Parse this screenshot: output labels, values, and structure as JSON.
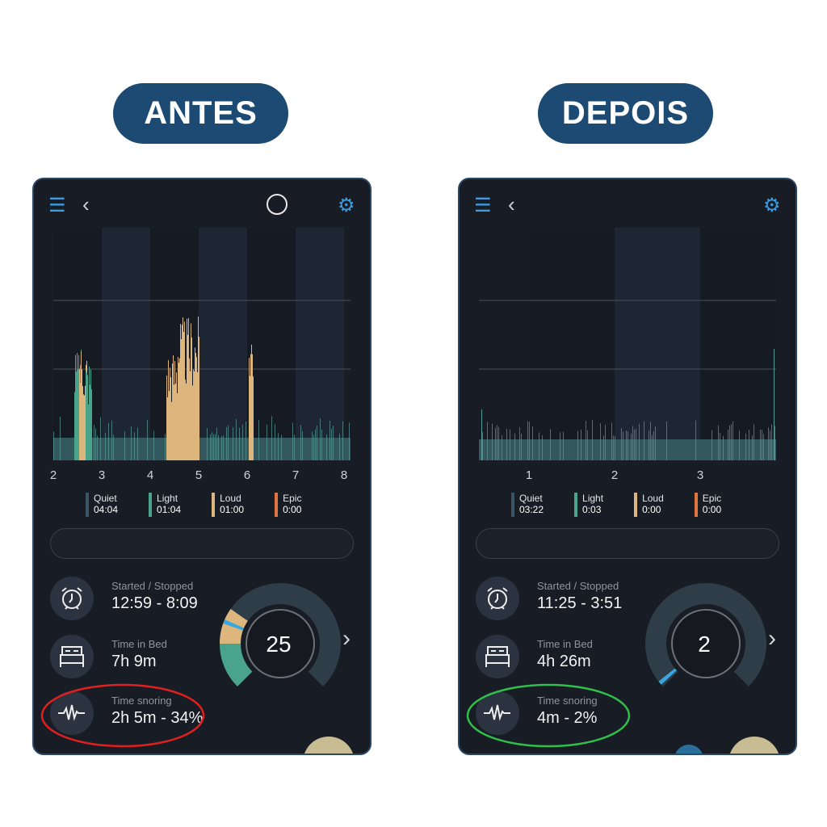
{
  "labels": {
    "before": "ANTES",
    "after": "DEPOIS"
  },
  "colors": {
    "quiet": "#3b5566",
    "light": "#4aa48c",
    "loud": "#dcb67c",
    "epic": "#e0733e",
    "score_tick": "#3aa6e0",
    "before_circle": "#e0201e",
    "after_circle": "#2fbf4a"
  },
  "panels": [
    {
      "axis_ticks": [
        "2",
        "3",
        "4",
        "5",
        "6",
        "7",
        "8"
      ],
      "legend": [
        {
          "name": "Quiet",
          "value": "04:04"
        },
        {
          "name": "Light",
          "value": "01:04"
        },
        {
          "name": "Loud",
          "value": "01:00"
        },
        {
          "name": "Epic",
          "value": "0:00"
        }
      ],
      "started_label": "Started / Stopped",
      "started_value": "12:59 - 8:09",
      "bed_label": "Time in Bed",
      "bed_value": "7h 9m",
      "snore_label": "Time snoring",
      "snore_value": "2h 5m - 34%",
      "score": "25",
      "has_history_icon": true
    },
    {
      "axis_ticks": [
        "1",
        "2",
        "3"
      ],
      "legend": [
        {
          "name": "Quiet",
          "value": "03:22"
        },
        {
          "name": "Light",
          "value": "0:03"
        },
        {
          "name": "Loud",
          "value": "0:00"
        },
        {
          "name": "Epic",
          "value": "0:00"
        }
      ],
      "started_label": "Started / Stopped",
      "started_value": "11:25 - 3:51",
      "bed_label": "Time in Bed",
      "bed_value": "4h 26m",
      "snore_label": "Time snoring",
      "snore_value": "4m - 2%",
      "score": "2",
      "has_history_icon": false
    }
  ]
}
